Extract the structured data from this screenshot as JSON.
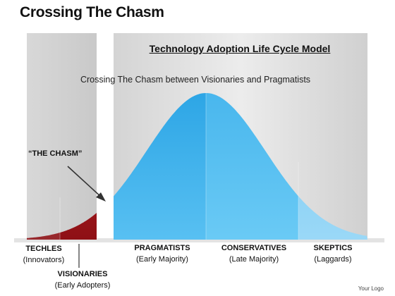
{
  "slide": {
    "title": "Crossing The Chasm",
    "logo_text": "Your Logo"
  },
  "model": {
    "title": "Technology Adoption Life Cycle Model",
    "subtitle": "Crossing The Chasm between Visionaries and Pragmatists",
    "chasm_label": "“THE CHASM”"
  },
  "segments": [
    {
      "name": "TECHLES",
      "sub": "(Innovators)",
      "color": "#b01c22"
    },
    {
      "name": "VISIONARIES",
      "sub": "(Early Adopters)",
      "color": "#c8252b"
    },
    {
      "name": "PRAGMATISTS",
      "sub": "(Early Majority)",
      "color": "#2fa8e6"
    },
    {
      "name": "CONSERVATIVES",
      "sub": "(Late Majority)",
      "color": "#4fb8ec"
    },
    {
      "name": "SKEPTICS",
      "sub": "(Laggards)",
      "color": "#7ccaf2"
    }
  ],
  "colors": {
    "panel": "#d9d9d9",
    "chasm_gap": "#ffffff",
    "red_accent": "#c0161c",
    "blue_accent": "#1e9fe0"
  }
}
